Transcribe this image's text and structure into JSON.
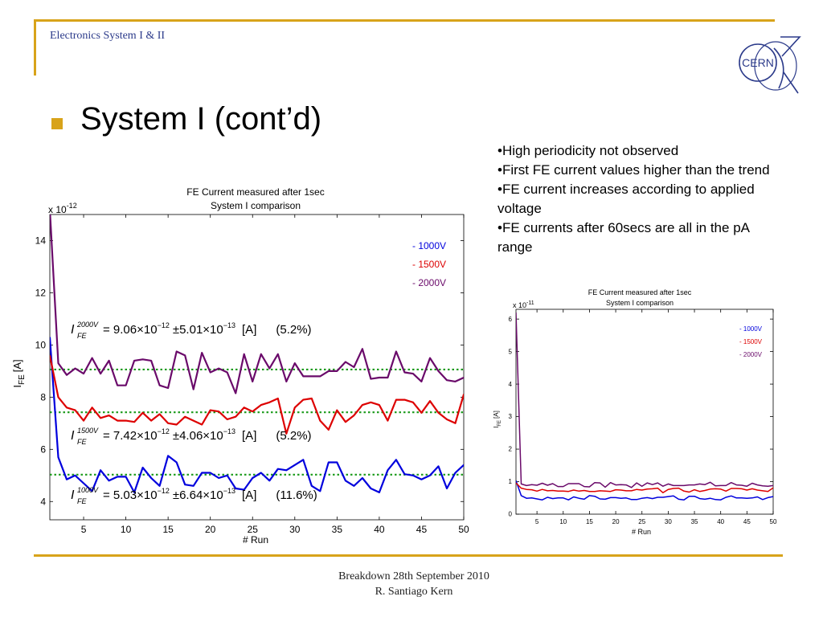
{
  "header": {
    "course": "Electronics System I & II"
  },
  "logo": {
    "text": "CERN"
  },
  "slide": {
    "title": "System I (cont’d)"
  },
  "notes": [
    "•High periodicity not observed",
    "•First FE current values higher than the trend",
    "•FE current increases according to applied voltage",
    "•FE currents after 60secs are all in the pA range"
  ],
  "footer": {
    "line1": "Breakdown 28th September 2010",
    "line2": "R. Santiago Kern"
  },
  "colors": {
    "v1000": "#0000dd",
    "v1500": "#dd0000",
    "v2000": "#6a0a6a",
    "mean": "#1a9a1a",
    "accent": "#d8a31a"
  },
  "chart_data": [
    {
      "type": "line",
      "title": "FE Current measured after 1sec",
      "subtitle": "System I comparison",
      "multiplier": "x 10",
      "multiplier_exp": "-12",
      "xlabel": "# Run",
      "ylabel_main": "I",
      "ylabel_sub": "FE",
      "ylabel_unit": "[A]",
      "xlim": [
        1,
        50
      ],
      "ylim": [
        3.3,
        15
      ],
      "xticks": [
        5,
        10,
        15,
        20,
        25,
        30,
        35,
        40,
        45,
        50
      ],
      "yticks": [
        4,
        6,
        8,
        10,
        12,
        14
      ],
      "legend_position": "top-right",
      "series": [
        {
          "name": "- 1000V",
          "color": "#0000dd",
          "values": [
            10.3,
            5.7,
            4.85,
            5.0,
            4.7,
            4.4,
            5.2,
            4.8,
            4.95,
            4.95,
            4.35,
            5.3,
            4.9,
            4.6,
            5.75,
            5.5,
            4.65,
            4.6,
            5.1,
            5.1,
            4.9,
            5.0,
            4.5,
            4.45,
            4.9,
            5.1,
            4.8,
            5.25,
            5.2,
            5.4,
            5.6,
            4.6,
            4.4,
            5.5,
            5.5,
            4.8,
            4.6,
            4.9,
            4.5,
            4.35,
            5.2,
            5.6,
            5.05,
            5.0,
            4.85,
            5.0,
            5.35,
            4.5,
            5.1,
            5.4,
            4.85
          ]
        },
        {
          "name": "- 1500V",
          "color": "#dd0000",
          "values": [
            9.6,
            8.0,
            7.6,
            7.5,
            7.1,
            7.6,
            7.2,
            7.3,
            7.1,
            7.1,
            7.05,
            7.4,
            7.1,
            7.35,
            7.0,
            6.95,
            7.25,
            7.1,
            6.95,
            7.5,
            7.45,
            7.15,
            7.25,
            7.6,
            7.45,
            7.7,
            7.8,
            7.95,
            6.6,
            7.6,
            7.9,
            7.95,
            7.1,
            6.75,
            7.5,
            7.05,
            7.3,
            7.7,
            7.8,
            7.7,
            7.1,
            7.9,
            7.9,
            7.8,
            7.4,
            7.85,
            7.4,
            7.15,
            7.0,
            8.1,
            7.2
          ]
        },
        {
          "name": "- 2000V",
          "color": "#6a0a6a",
          "values": [
            15.2,
            9.3,
            8.85,
            9.1,
            8.9,
            9.5,
            8.9,
            9.4,
            8.45,
            8.45,
            9.4,
            9.45,
            9.4,
            8.45,
            8.35,
            9.75,
            9.6,
            8.3,
            9.7,
            8.95,
            9.1,
            8.95,
            8.15,
            9.65,
            8.6,
            9.65,
            9.1,
            9.65,
            8.6,
            9.3,
            8.8,
            8.8,
            8.8,
            9.0,
            9.0,
            9.35,
            9.15,
            9.85,
            8.7,
            8.75,
            8.75,
            9.75,
            8.95,
            8.9,
            8.6,
            9.5,
            9.0,
            8.65,
            8.6,
            8.75,
            8.75
          ]
        }
      ],
      "means": [
        {
          "value": 9.06,
          "eq_sup": "2000V",
          "eq_body": "= 9.06×10",
          "exp1": "−12",
          "mid": "±5.01×10",
          "exp2": "−13",
          "unit": "[A]",
          "pct": "(5.2%)"
        },
        {
          "value": 7.42,
          "eq_sup": "1500V",
          "eq_body": "= 7.42×10",
          "exp1": "−12",
          "mid": "±4.06×10",
          "exp2": "−13",
          "unit": "[A]",
          "pct": "(5.2%)"
        },
        {
          "value": 5.03,
          "eq_sup": "1000V",
          "eq_body": "= 5.03×10",
          "exp1": "−12",
          "mid": "±6.64×10",
          "exp2": "−13",
          "unit": "[A]",
          "pct": "(11.6%)"
        }
      ],
      "eq_symbol": "I",
      "eq_sub": "FE"
    },
    {
      "type": "line",
      "title": "FE Current measured after 1sec",
      "subtitle": "System I comparison",
      "multiplier": "x 10",
      "multiplier_exp": "-11",
      "xlabel": "# Run",
      "ylabel_main": "I",
      "ylabel_sub": "FE",
      "ylabel_unit": "[A]",
      "xlim": [
        1,
        50
      ],
      "ylim": [
        0,
        6.3
      ],
      "xticks": [
        5,
        10,
        15,
        20,
        25,
        30,
        35,
        40,
        45,
        50
      ],
      "yticks": [
        0,
        1,
        2,
        3,
        4,
        5,
        6
      ],
      "legend_position": "top-right",
      "series": [
        {
          "name": "- 1000V",
          "color": "#0000dd",
          "values": [
            1.03,
            0.57,
            0.49,
            0.5,
            0.47,
            0.44,
            0.52,
            0.48,
            0.5,
            0.5,
            0.44,
            0.53,
            0.49,
            0.46,
            0.57,
            0.55,
            0.47,
            0.46,
            0.51,
            0.51,
            0.49,
            0.5,
            0.45,
            0.45,
            0.49,
            0.51,
            0.48,
            0.52,
            0.52,
            0.54,
            0.56,
            0.46,
            0.44,
            0.55,
            0.55,
            0.48,
            0.46,
            0.49,
            0.45,
            0.44,
            0.52,
            0.56,
            0.5,
            0.5,
            0.49,
            0.5,
            0.53,
            0.45,
            0.51,
            0.54,
            0.49
          ]
        },
        {
          "name": "- 1500V",
          "color": "#dd0000",
          "values": [
            0.96,
            0.8,
            0.76,
            0.75,
            0.71,
            0.76,
            0.72,
            0.73,
            0.71,
            0.71,
            0.7,
            0.74,
            0.71,
            0.73,
            0.7,
            0.7,
            0.72,
            0.71,
            0.7,
            0.75,
            0.74,
            0.72,
            0.72,
            0.76,
            0.74,
            0.77,
            0.78,
            0.8,
            0.66,
            0.76,
            0.79,
            0.8,
            0.71,
            0.68,
            0.75,
            0.7,
            0.73,
            0.77,
            0.78,
            0.77,
            0.71,
            0.79,
            0.79,
            0.78,
            0.74,
            0.78,
            0.74,
            0.72,
            0.7,
            0.81,
            0.72
          ]
        },
        {
          "name": "- 2000V",
          "color": "#6a0a6a",
          "values": [
            6.2,
            0.93,
            0.88,
            0.91,
            0.89,
            0.95,
            0.89,
            0.94,
            0.85,
            0.85,
            0.94,
            0.94,
            0.94,
            0.85,
            0.84,
            0.97,
            0.96,
            0.83,
            0.97,
            0.9,
            0.91,
            0.9,
            0.82,
            0.96,
            0.86,
            0.96,
            0.91,
            0.96,
            0.86,
            0.93,
            0.88,
            0.88,
            0.88,
            0.9,
            0.9,
            0.93,
            0.91,
            0.98,
            0.87,
            0.88,
            0.88,
            0.97,
            0.9,
            0.89,
            0.86,
            0.95,
            0.9,
            0.87,
            0.86,
            0.88,
            0.87
          ]
        }
      ]
    }
  ]
}
